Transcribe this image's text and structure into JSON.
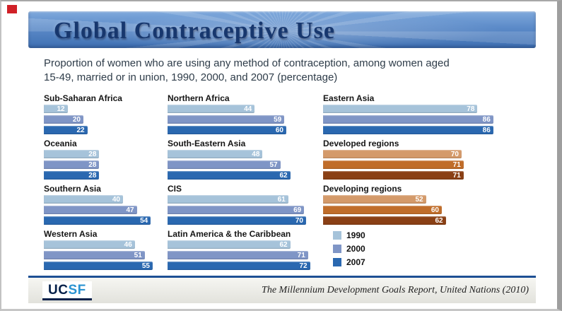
{
  "slide": {
    "title": "Global Contraceptive Use",
    "subtitle_line1": "Proportion of women who are using any method of contraception, among women aged",
    "subtitle_line2": "15-49, married or in union, 1990, 2000, and 2007 (percentage)",
    "footer_source": "The Millennium Development Goals Report, United Nations (2010)",
    "logo": {
      "uc": "UC",
      "sf": "SF"
    }
  },
  "colors": {
    "bar_1990": "#a6c3da",
    "bar_2000": "#7f95c6",
    "bar_2007": "#2a68b0",
    "dev_1990": "#d49a6a",
    "dev_2000": "#c06d2a",
    "dev_2007": "#8a4015",
    "rule": "#1d4f94",
    "accent_red": "#d02027"
  },
  "chart_data": {
    "type": "bar",
    "orientation": "horizontal",
    "series_labels": [
      "1990",
      "2000",
      "2007"
    ],
    "xlim": [
      0,
      100
    ],
    "columns": [
      {
        "groups": [
          {
            "name": "Sub-Saharan Africa",
            "values": [
              12,
              20,
              22
            ],
            "palette": "blue"
          },
          {
            "name": "Oceania",
            "values": [
              28,
              28,
              28
            ],
            "palette": "blue"
          },
          {
            "name": "Southern Asia",
            "values": [
              40,
              47,
              54
            ],
            "palette": "blue"
          },
          {
            "name": "Western Asia",
            "values": [
              46,
              51,
              55
            ],
            "palette": "blue"
          }
        ]
      },
      {
        "groups": [
          {
            "name": "Northern Africa",
            "values": [
              44,
              59,
              60
            ],
            "palette": "blue"
          },
          {
            "name": "South-Eastern Asia",
            "values": [
              48,
              57,
              62
            ],
            "palette": "blue"
          },
          {
            "name": "CIS",
            "values": [
              61,
              69,
              70
            ],
            "palette": "blue"
          },
          {
            "name": "Latin America & the Caribbean",
            "values": [
              62,
              71,
              72
            ],
            "palette": "blue"
          }
        ]
      },
      {
        "groups": [
          {
            "name": "Eastern Asia",
            "values": [
              78,
              86,
              86
            ],
            "palette": "blue"
          },
          {
            "name": "Developed regions",
            "values": [
              70,
              71,
              71
            ],
            "palette": "brown"
          },
          {
            "name": "Developing regions",
            "values": [
              52,
              60,
              62
            ],
            "palette": "brown"
          }
        ]
      }
    ],
    "legend": [
      {
        "label": "1990",
        "color_key": "bar_1990"
      },
      {
        "label": "2000",
        "color_key": "bar_2000"
      },
      {
        "label": "2007",
        "color_key": "bar_2007"
      }
    ]
  }
}
